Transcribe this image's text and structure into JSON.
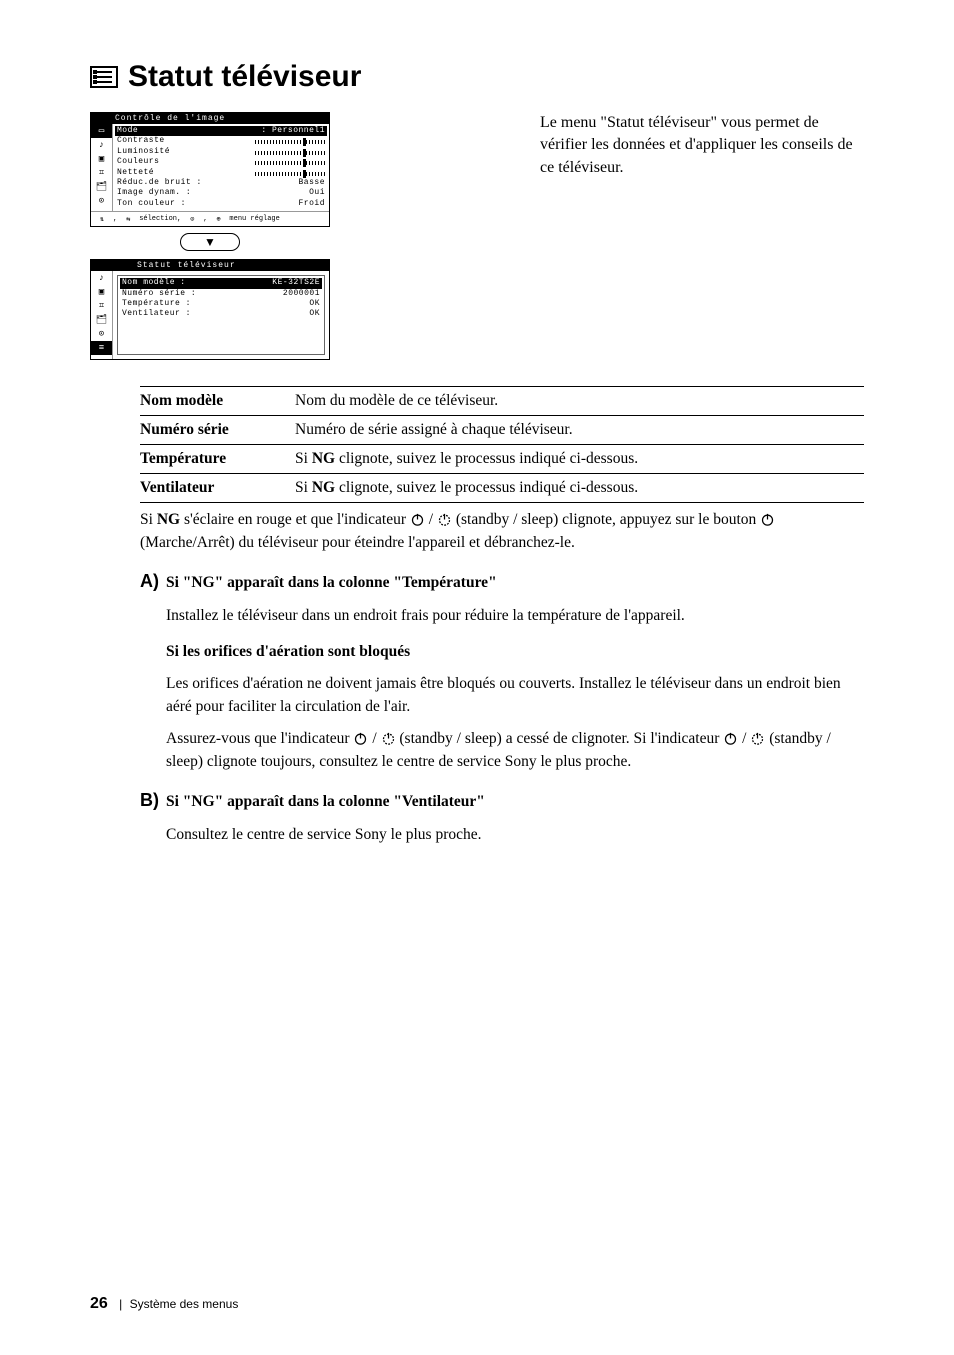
{
  "page": {
    "title": "Statut téléviseur",
    "footer_page": "26",
    "footer_label": "Système des menus"
  },
  "intro": "Le menu \"Statut téléviseur\" vous permet de vérifier les données et d'appliquer les conseils de ce téléviseur.",
  "osd1": {
    "header": "Contrôle de l'image",
    "rows": [
      {
        "label": "Mode",
        "value": ": Personnel1",
        "sel": true,
        "slider": false
      },
      {
        "label": "Contraste",
        "value": "",
        "slider": true
      },
      {
        "label": "Luminosité",
        "value": "",
        "slider": true
      },
      {
        "label": "Couleurs",
        "value": "",
        "slider": true
      },
      {
        "label": "Netteté",
        "value": "",
        "slider": true
      },
      {
        "label": "Réduc.de bruit :",
        "value": "Basse",
        "slider": false
      },
      {
        "label": "Image dynam. :",
        "value": "Oui",
        "slider": false
      },
      {
        "label": "Ton couleur :",
        "value": "Froid",
        "slider": false
      }
    ],
    "footer_parts": [
      "sélection,",
      "menu réglage"
    ],
    "icons": [
      "tv",
      "note",
      "screen",
      "grid",
      "lock",
      "clock"
    ]
  },
  "osd2": {
    "header": "Statut téléviseur",
    "rows": [
      {
        "label": "Nom modèle :",
        "value": "KE-32TS2E",
        "sel": true
      },
      {
        "label": "Numéro série :",
        "value": "2000001"
      },
      {
        "label": "Température :",
        "value": "OK"
      },
      {
        "label": "Ventilateur :",
        "value": "OK"
      }
    ],
    "icons": [
      "note",
      "screen",
      "grid",
      "lock",
      "clock",
      "list"
    ]
  },
  "table": [
    {
      "k": "Nom modèle",
      "v": "Nom du modèle de ce téléviseur."
    },
    {
      "k": "Numéro série",
      "v": "Numéro de série assigné à chaque téléviseur."
    },
    {
      "k": "Température",
      "v_pre": "Si ",
      "v_bold": "NG",
      "v_post": " clignote, suivez le processus indiqué ci-dessous."
    },
    {
      "k": "Ventilateur",
      "v_pre": "Si ",
      "v_bold": "NG",
      "v_post": " clignote, suivez le processus indiqué ci-dessous."
    }
  ],
  "body": {
    "ng_line_pre": "Si ",
    "ng_bold": "NG",
    "ng_line_mid": " s'éclaire en rouge et que l'indicateur ",
    "ng_line_post": " (standby / sleep) clignote, appuyez sur le bouton ",
    "ng_line_end": " (Marche/Arrêt) du téléviseur pour éteindre l'appareil et débranchez-le.",
    "A": {
      "letter": "A)",
      "head": "Si \"NG\" apparaît dans la colonne \"Température\"",
      "p1": "Installez le téléviseur dans un endroit frais pour réduire la température de l'appareil.",
      "sub": "Si les orifices d'aération sont bloqués",
      "p2": "Les orifices d'aération ne doivent jamais être bloqués ou couverts. Installez le téléviseur dans un endroit bien aéré pour faciliter la circulation de l'air.",
      "p3_pre": "Assurez-vous que l'indicateur ",
      "p3_mid": " (standby / sleep) a cessé de clignoter. Si l'indicateur ",
      "p3_post": " (standby / sleep) clignote toujours, consultez le centre de service Sony le plus proche."
    },
    "B": {
      "letter": "B)",
      "head": "Si \"NG\" apparaît dans la colonne \"Ventilateur\"",
      "p1": "Consultez le centre de service Sony le plus proche."
    }
  },
  "colors": {
    "text": "#000000",
    "bg": "#ffffff"
  }
}
